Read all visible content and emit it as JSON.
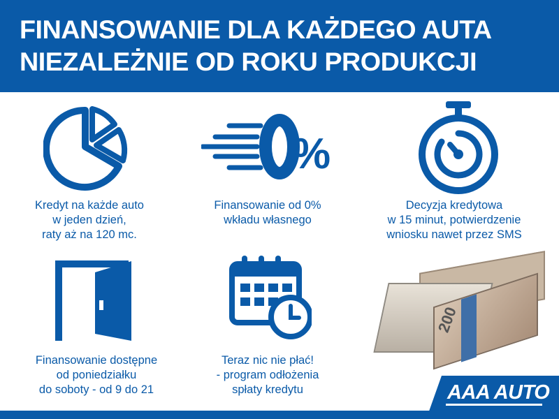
{
  "header": {
    "line1": "FINANSOWANIE DLA KAŻDEGO AUTA",
    "line2": "NIEZALEŻNIE OD ROKU PRODUKCJI"
  },
  "features": [
    {
      "icon": "pie-chart-icon",
      "lines": [
        "Kredyt na każde auto",
        "w jeden dzień,",
        "raty aż na 120 mc."
      ]
    },
    {
      "icon": "zero-percent-icon",
      "icon_text": "0%",
      "lines": [
        "Finansowanie od 0%",
        "wkładu własnego"
      ]
    },
    {
      "icon": "stopwatch-icon",
      "lines": [
        "Decyzja kredytowa",
        "w 15 minut, potwierdzenie",
        "wniosku nawet przez SMS"
      ]
    },
    {
      "icon": "open-door-icon",
      "lines": [
        "Finansowanie dostępne",
        "od poniedziałku",
        "do soboty - od 9 do 21"
      ]
    },
    {
      "icon": "calendar-clock-icon",
      "lines": [
        "Teraz nic nie płać!",
        "- program odłożenia",
        "spłaty kredytu"
      ]
    }
  ],
  "money_image": {
    "banknote_value": "200"
  },
  "logo": {
    "text": "AAA AUTO"
  },
  "colors": {
    "brand_blue": "#0a5aa8",
    "white": "#ffffff"
  }
}
